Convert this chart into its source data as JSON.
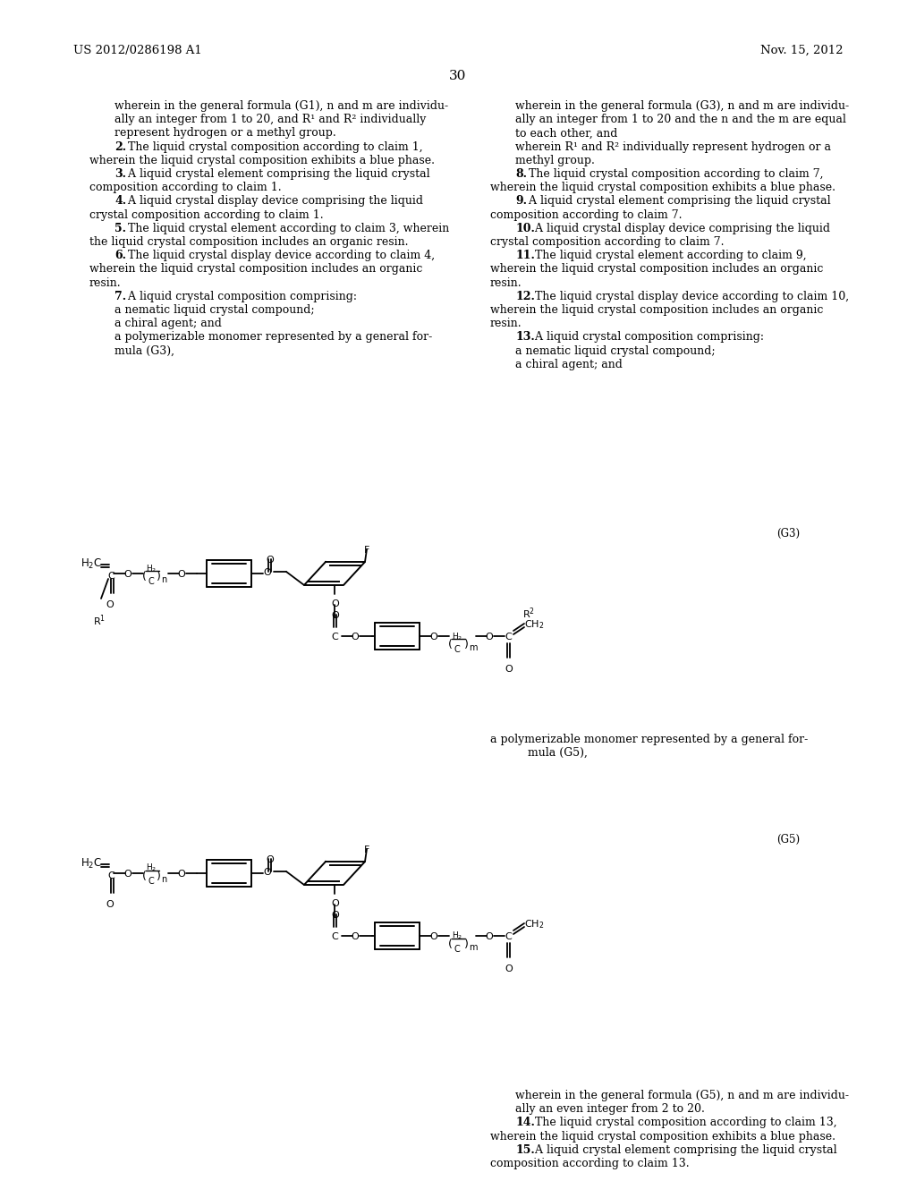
{
  "background_color": "#ffffff",
  "header_left": "US 2012/0286198 A1",
  "header_right": "Nov. 15, 2012",
  "page_number": "30",
  "left_col_blocks": [
    {
      "indent": 2,
      "lines": [
        "wherein in the general formula (G1), n and m are individu-",
        "ally an integer from 1 to 20, and R¹ and R² individually",
        "represent hydrogen or a methyl group."
      ]
    },
    {
      "claim": "2",
      "lines": [
        ". The liquid crystal composition according to claim 1,",
        "wherein the liquid crystal composition exhibits a blue phase."
      ]
    },
    {
      "claim": "3",
      "lines": [
        ". A liquid crystal element comprising the liquid crystal",
        "composition according to claim 1."
      ]
    },
    {
      "claim": "4",
      "lines": [
        ". A liquid crystal display device comprising the liquid",
        "crystal composition according to claim 1."
      ]
    },
    {
      "claim": "5",
      "lines": [
        ". The liquid crystal element according to claim 3, wherein",
        "the liquid crystal composition includes an organic resin."
      ]
    },
    {
      "claim": "6",
      "lines": [
        ". The liquid crystal display device according to claim 4,",
        "wherein the liquid crystal composition includes an organic",
        "resin."
      ]
    },
    {
      "claim": "7",
      "lines": [
        ". A liquid crystal composition comprising:",
        "a nematic liquid crystal compound;",
        "a chiral agent; and",
        "a polymerizable monomer represented by a general for-",
        "   mula (G3),"
      ]
    }
  ],
  "right_col_blocks": [
    {
      "indent": 2,
      "lines": [
        "wherein in the general formula (G3), n and m are individu-",
        "ally an integer from 1 to 20 and the n and the m are equal",
        "to each other, and",
        "wherein R¹ and R² individually represent hydrogen or a",
        "methyl group."
      ]
    },
    {
      "claim": "8",
      "lines": [
        ". The liquid crystal composition according to claim 7,",
        "wherein the liquid crystal composition exhibits a blue phase."
      ]
    },
    {
      "claim": "9",
      "lines": [
        ". A liquid crystal element comprising the liquid crystal",
        "composition according to claim 7."
      ]
    },
    {
      "claim": "10",
      "lines": [
        ". A liquid crystal display device comprising the liquid",
        "crystal composition according to claim 7."
      ]
    },
    {
      "claim": "11",
      "lines": [
        ". The liquid crystal element according to claim 9,",
        "wherein the liquid crystal composition includes an organic",
        "resin."
      ]
    },
    {
      "claim": "12",
      "lines": [
        ". The liquid crystal display device according to claim 10,",
        "wherein the liquid crystal composition includes an organic",
        "resin."
      ]
    },
    {
      "claim": "13",
      "lines": [
        ". A liquid crystal composition comprising:",
        "a nematic liquid crystal compound;",
        "a chiral agent; and"
      ]
    }
  ],
  "mid_right_lines": [
    "a polymerizable monomer represented by a general for-",
    "   mula (G5),"
  ],
  "bottom_right_blocks": [
    {
      "indent": 2,
      "lines": [
        "wherein in the general formula (G5), n and m are individu-",
        "ally an even integer from 2 to 20."
      ]
    },
    {
      "claim": "14",
      "lines": [
        ". The liquid crystal composition according to claim 13,",
        "wherein the liquid crystal composition exhibits a blue phase."
      ]
    },
    {
      "claim": "15",
      "lines": [
        ". A liquid crystal element comprising the liquid crystal",
        "composition according to claim 13."
      ]
    }
  ],
  "g3_label": "(G3)",
  "g5_label": "(G5)"
}
